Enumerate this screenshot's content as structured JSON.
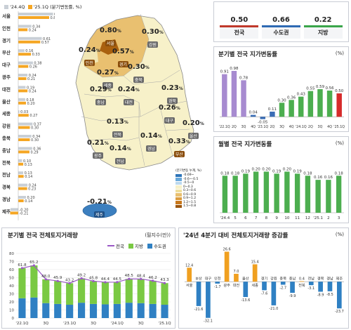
{
  "regional_bars": {
    "legend": {
      "q4": "'24.4Q",
      "q1": "'25.1Q",
      "unit": "(분기변동률, %)"
    },
    "colors": {
      "q4": "#c9cfd6",
      "q1": "#f5a623"
    },
    "items": [
      {
        "region": "서울",
        "q4": "0.90",
        "q1": "0.80"
      },
      {
        "region": "인천",
        "q4": "0.34",
        "q1": "0.24"
      },
      {
        "region": "경기",
        "q4": "0.61",
        "q1": "0.57"
      },
      {
        "region": "부산",
        "q4": "0.16",
        "q1": "0.33"
      },
      {
        "region": "대구",
        "q4": "0.38",
        "q1": "0.26"
      },
      {
        "region": "광주",
        "q4": "0.24",
        "q1": "0.21"
      },
      {
        "region": "대전",
        "q4": "0.19",
        "q1": "0.24"
      },
      {
        "region": "울산",
        "q4": "0.18",
        "q1": "0.20"
      },
      {
        "region": "세종",
        "q4": "0.03",
        "q1": "0.27"
      },
      {
        "region": "강원",
        "q4": "0.37",
        "q1": "0.30"
      },
      {
        "region": "충북",
        "q4": "0.34",
        "q1": "0.30"
      },
      {
        "region": "충남",
        "q4": "0.36",
        "q1": "0.29"
      },
      {
        "region": "전북",
        "q4": "0.10",
        "q1": "0.13"
      },
      {
        "region": "전남",
        "q4": "0.13",
        "q1": "0.14"
      },
      {
        "region": "경북",
        "q4": "0.24",
        "q1": "0.23"
      },
      {
        "region": "경남",
        "q4": "0.20",
        "q1": "0.14"
      },
      {
        "region": "제주",
        "q4": "-0.20",
        "q1": "-0.21"
      }
    ]
  },
  "map": {
    "labels": [
      {
        "region": "서울",
        "value": "0.80",
        "unit": "%"
      },
      {
        "region": "인천",
        "value": "0.24",
        "unit": "%"
      },
      {
        "region": "경기",
        "value": "0.57",
        "unit": "%"
      },
      {
        "region": "강원",
        "value": "0.30",
        "unit": "%"
      },
      {
        "region": "세종",
        "value": "0.27",
        "unit": "%"
      },
      {
        "region": "충북",
        "value": "0.30",
        "unit": "%"
      },
      {
        "region": "충남",
        "value": "0.29",
        "unit": "%"
      },
      {
        "region": "대전",
        "value": "0.24",
        "unit": "%"
      },
      {
        "region": "경북",
        "value": "0.23",
        "unit": "%"
      },
      {
        "region": "대구",
        "value": "0.26",
        "unit": "%"
      },
      {
        "region": "전북",
        "value": "0.13",
        "unit": "%"
      },
      {
        "region": "울산",
        "value": "0.20",
        "unit": "%"
      },
      {
        "region": "경남",
        "value": "0.14",
        "unit": "%"
      },
      {
        "region": "광주",
        "value": "0.21",
        "unit": "%"
      },
      {
        "region": "전남",
        "value": "0.14",
        "unit": "%"
      },
      {
        "region": "부산",
        "value": "0.33",
        "unit": "%"
      },
      {
        "region": "제주",
        "value": "-0.21",
        "unit": "%"
      }
    ],
    "legend_title": "(분기변동 누계, %)",
    "legend": [
      {
        "label": "-0.69~",
        "color": "#2d74b9"
      },
      {
        "label": "-0.6~-0.5",
        "color": "#6aa9da"
      },
      {
        "label": "-0.5~0",
        "color": "#bcd9ee"
      },
      {
        "label": "0~0.3",
        "color": "#f7f1c9"
      },
      {
        "label": "0.3~0.6",
        "color": "#efdf9b"
      },
      {
        "label": "0.6~0.9",
        "color": "#e9c070"
      },
      {
        "label": "0.9~1.2",
        "color": "#dc9c3e"
      },
      {
        "label": "1.2~1.5",
        "color": "#c8771a"
      },
      {
        "label": "1.5~0.8",
        "color": "#9a540b"
      }
    ]
  },
  "summary": {
    "items": [
      {
        "label": "전국",
        "value": "0.50",
        "color": "#c0392b"
      },
      {
        "label": "수도권",
        "value": "0.66",
        "color": "#2e6ab3"
      },
      {
        "label": "지방",
        "value": "0.22",
        "color": "#3aa54a"
      }
    ]
  },
  "quarterly": {
    "title": "분기별 전국 지가변동률",
    "unit": "(%)",
    "chart_data": {
      "type": "bar",
      "categories": [
        "'22.1Q",
        "2Q",
        "3Q",
        "4Q",
        "'23.1Q",
        "2Q",
        "3Q",
        "4Q",
        "'24.1Q",
        "2Q",
        "3Q",
        "4Q",
        "'25.1Q"
      ],
      "tick_labels": [
        "'22.1Q",
        "2Q",
        "3Q",
        "4Q",
        "'23.1Q",
        "2Q",
        "3Q",
        "4Q",
        "'24.1Q",
        "2Q",
        "3Q",
        "4Q",
        "'25.1Q"
      ],
      "values": [
        0.91,
        0.98,
        0.78,
        0.04,
        -0.05,
        0.11,
        0.3,
        0.36,
        0.43,
        0.55,
        0.59,
        0.56,
        0.5
      ],
      "labels": [
        "0.91",
        "0.98",
        "0.78",
        "0.04",
        "-0.05",
        "0.11",
        "0.30",
        "0.36",
        "0.43",
        "0.55",
        "0.59",
        "0.56",
        "0.50"
      ],
      "colors": [
        "#a78bd0",
        "#a78bd0",
        "#a78bd0",
        "#3b6db5",
        "#3b6db5",
        "#3b6db5",
        "#4cae4f",
        "#4cae4f",
        "#4cae4f",
        "#4cae4f",
        "#4cae4f",
        "#4cae4f",
        "#d62b2b"
      ],
      "ylim": [
        -0.1,
        1.1
      ]
    }
  },
  "monthly": {
    "title": "월별 전국 지가변동률",
    "unit": "(%)",
    "chart_data": {
      "type": "bar",
      "categories": [
        "'24.4",
        "5",
        "6",
        "7",
        "8",
        "9",
        "10",
        "11",
        "12",
        "'25.1",
        "2",
        "3"
      ],
      "values": [
        0.18,
        0.18,
        0.19,
        0.2,
        0.2,
        0.19,
        0.2,
        0.19,
        0.18,
        0.16,
        0.16,
        0.18
      ],
      "labels": [
        "0.18",
        "0.18",
        "0.19",
        "0.20",
        "0.20",
        "0.19",
        "0.20",
        "0.19",
        "0.18",
        "0.16",
        "0.16",
        "0.18"
      ],
      "color": "#4cae4f",
      "ylim": [
        0,
        0.28
      ]
    }
  },
  "volume": {
    "title": "분기별 전국 전체토지거래량",
    "unit": "(필지수(만))",
    "legend": [
      {
        "label": "전국",
        "color": "#9b59c6",
        "kind": "line"
      },
      {
        "label": "지방",
        "color": "#7ac943",
        "kind": "bar"
      },
      {
        "label": "수도권",
        "color": "#2f80c3",
        "kind": "bar"
      }
    ],
    "chart_data": {
      "type": "bar",
      "stacked": true,
      "categories": [
        "'22.1Q",
        "",
        "3Q",
        "",
        "'23.1Q",
        "",
        "3Q",
        "",
        "'24.1Q",
        "",
        "3Q",
        "",
        "'25.1Q"
      ],
      "tick_labels": [
        "'22.1Q",
        "3Q",
        "'23.1Q",
        "3Q",
        "'24.1Q",
        "3Q",
        "'25.1Q"
      ],
      "totals": [
        61.8,
        65.2,
        48.0,
        45.9,
        43.2,
        49.2,
        45.8,
        44.4,
        44.5,
        48.5,
        48.4,
        46.2,
        43.3
      ],
      "total_labels": [
        "61.8",
        "65.2",
        "48.0",
        "45.9",
        "43.2",
        "49.2",
        "45.8",
        "44.4",
        "44.5",
        "48.5",
        "48.4",
        "46.2",
        "43.3"
      ],
      "series": [
        {
          "name": "수도권",
          "values": [
            24.5,
            25.5,
            18.5,
            17.5,
            16.5,
            19.0,
            17.5,
            17.0,
            17.5,
            19.0,
            18.5,
            17.5,
            16.5
          ]
        },
        {
          "name": "지방",
          "values": [
            37.3,
            39.7,
            29.5,
            28.4,
            26.7,
            30.2,
            28.3,
            27.4,
            27.0,
            29.5,
            29.9,
            28.7,
            26.8
          ]
        }
      ],
      "y_ticks": [
        "0",
        "10",
        "20",
        "30",
        "40",
        "50",
        "60",
        "70",
        "80"
      ],
      "ylim": [
        0,
        80
      ]
    }
  },
  "changes": {
    "title": "'24년 4분기 대비 전체토지거래량 증감률",
    "unit": "(%)",
    "chart_data": {
      "type": "bar",
      "categories": [
        "서울",
        "부산",
        "대구",
        "인천",
        "광주",
        "대전",
        "울산",
        "세종",
        "경기",
        "강원",
        "충북",
        "충남",
        "전북",
        "전남",
        "경북",
        "경남",
        "제주"
      ],
      "values": [
        12.4,
        -21.6,
        -32.1,
        -1.7,
        26.6,
        7.0,
        -13.6,
        15.4,
        -7.6,
        -21.0,
        -2.7,
        -9.9,
        0.4,
        -3.1,
        -8.9,
        -8.5,
        -23.7
      ],
      "labels": [
        "12.4",
        "-21.6",
        "-32.1",
        "-1.7",
        "26.6",
        "7.0",
        "-13.6",
        "15.4",
        "-7.6",
        "-21.0",
        "-2.7",
        "-9.9",
        "0.4",
        "-3.1",
        "-8.9",
        "-8.5",
        "-23.7"
      ],
      "colors": {
        "positive": "#f0a020",
        "negative": "#2f80c3"
      },
      "ylim": [
        -36,
        30
      ]
    }
  }
}
